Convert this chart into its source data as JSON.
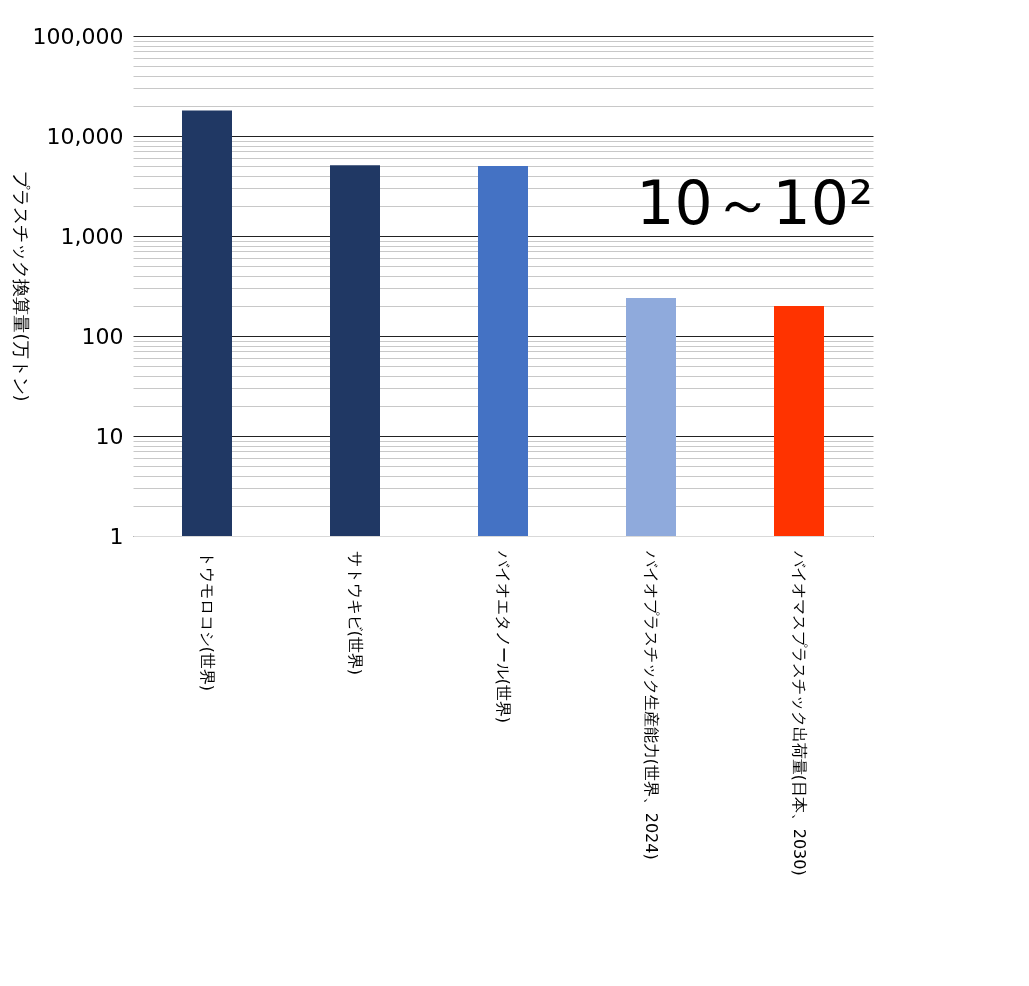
{
  "chart_data": {
    "type": "bar",
    "ylabel": "プラスチック換算量(万トン)",
    "categories": [
      "トウモロコシ(世界)",
      "サトウキビ(世界)",
      "バイオエタノール(世界)",
      "バイオプラスチック生産能力(世界、2024)",
      "バイオマスプラスチック出荷量(日本、2030)"
    ],
    "values": [
      18000,
      5100,
      5000,
      240,
      200
    ],
    "colors": [
      "#203864",
      "#203864",
      "#4472c4",
      "#8faadc",
      "#ff3300"
    ],
    "log": "y",
    "ylim": [
      1,
      100000
    ],
    "yticks": [
      1,
      10,
      100,
      {
        "value": 1000,
        "label": "1,000"
      },
      {
        "value": 10000,
        "label": "10,000"
      },
      {
        "value": 100000,
        "label": "100,000"
      },
      {
        "value": 2,
        "label": null
      },
      {
        "value": 3,
        "label": null
      },
      {
        "value": 4,
        "label": null
      },
      {
        "value": 5,
        "label": null
      },
      {
        "value": 6,
        "label": null
      },
      {
        "value": 7,
        "label": null
      },
      {
        "value": 8,
        "label": null
      },
      {
        "value": 9,
        "label": null
      },
      {
        "value": 20,
        "label": null
      },
      {
        "value": 30,
        "label": null
      },
      {
        "value": 40,
        "label": null
      },
      {
        "value": 50,
        "label": null
      },
      {
        "value": 60,
        "label": null
      },
      {
        "value": 70,
        "label": null
      },
      {
        "value": 80,
        "label": null
      },
      {
        "value": 90,
        "label": null
      },
      {
        "value": 200,
        "label": null
      },
      {
        "value": 300,
        "label": null
      },
      {
        "value": 400,
        "label": null
      },
      {
        "value": 500,
        "label": null
      },
      {
        "value": 600,
        "label": null
      },
      {
        "value": 700,
        "label": null
      },
      {
        "value": 800,
        "label": null
      },
      {
        "value": 900,
        "label": null
      },
      {
        "value": 2000,
        "label": null
      },
      {
        "value": 3000,
        "label": null
      },
      {
        "value": 4000,
        "label": null
      },
      {
        "value": 5000,
        "label": null
      },
      {
        "value": 6000,
        "label": null
      },
      {
        "value": 7000,
        "label": null
      },
      {
        "value": 8000,
        "label": null
      },
      {
        "value": 9000,
        "label": null
      },
      {
        "value": 20000,
        "label": null
      },
      {
        "value": 30000,
        "label": null
      },
      {
        "value": 40000,
        "label": null
      },
      {
        "value": 50000,
        "label": null
      },
      {
        "value": 60000,
        "label": null
      },
      {
        "value": 70000,
        "label": null
      },
      {
        "value": 80000,
        "label": null
      },
      {
        "value": 90000,
        "label": null
      }
    ],
    "grid": "y",
    "legend": false,
    "annotations": [
      "10～10²"
    ]
  }
}
